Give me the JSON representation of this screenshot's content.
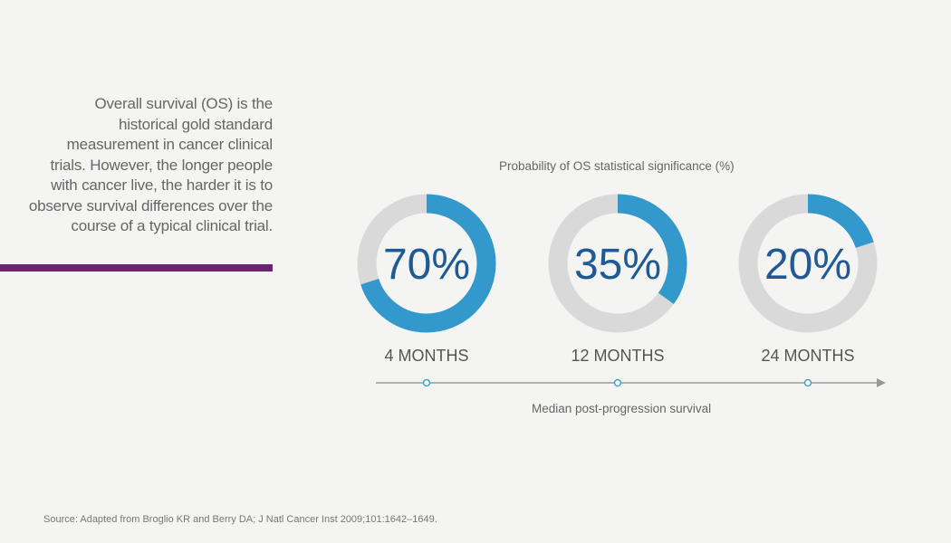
{
  "intro": {
    "lines": [
      "Overall survival (OS) is the",
      "historical gold standard",
      "measurement in cancer clinical",
      "trials. However, the longer people",
      "with cancer live, the harder it is to",
      "observe survival differences over the",
      "course of a typical clinical trial."
    ]
  },
  "colors": {
    "accent": "#3399cc",
    "track": "#d9d9d9",
    "value_text": "#1f5a96",
    "rule": "#6b2470",
    "axis": "#999999",
    "marker": "#3aa6c9"
  },
  "chart_data": {
    "type": "pie",
    "title": "Probability of OS statistical significance (%)",
    "categories": [
      "4 MONTHS",
      "12 MONTHS",
      "24 MONTHS"
    ],
    "values": [
      70,
      35,
      20
    ],
    "value_labels": [
      "70%",
      "35%",
      "20%"
    ],
    "xlabel": "Median post-progression survival",
    "legend": "none",
    "grid": false
  },
  "source": "Source: Adapted from Broglio KR and Berry DA; J Natl Cancer Inst 2009;101:1642–1649."
}
